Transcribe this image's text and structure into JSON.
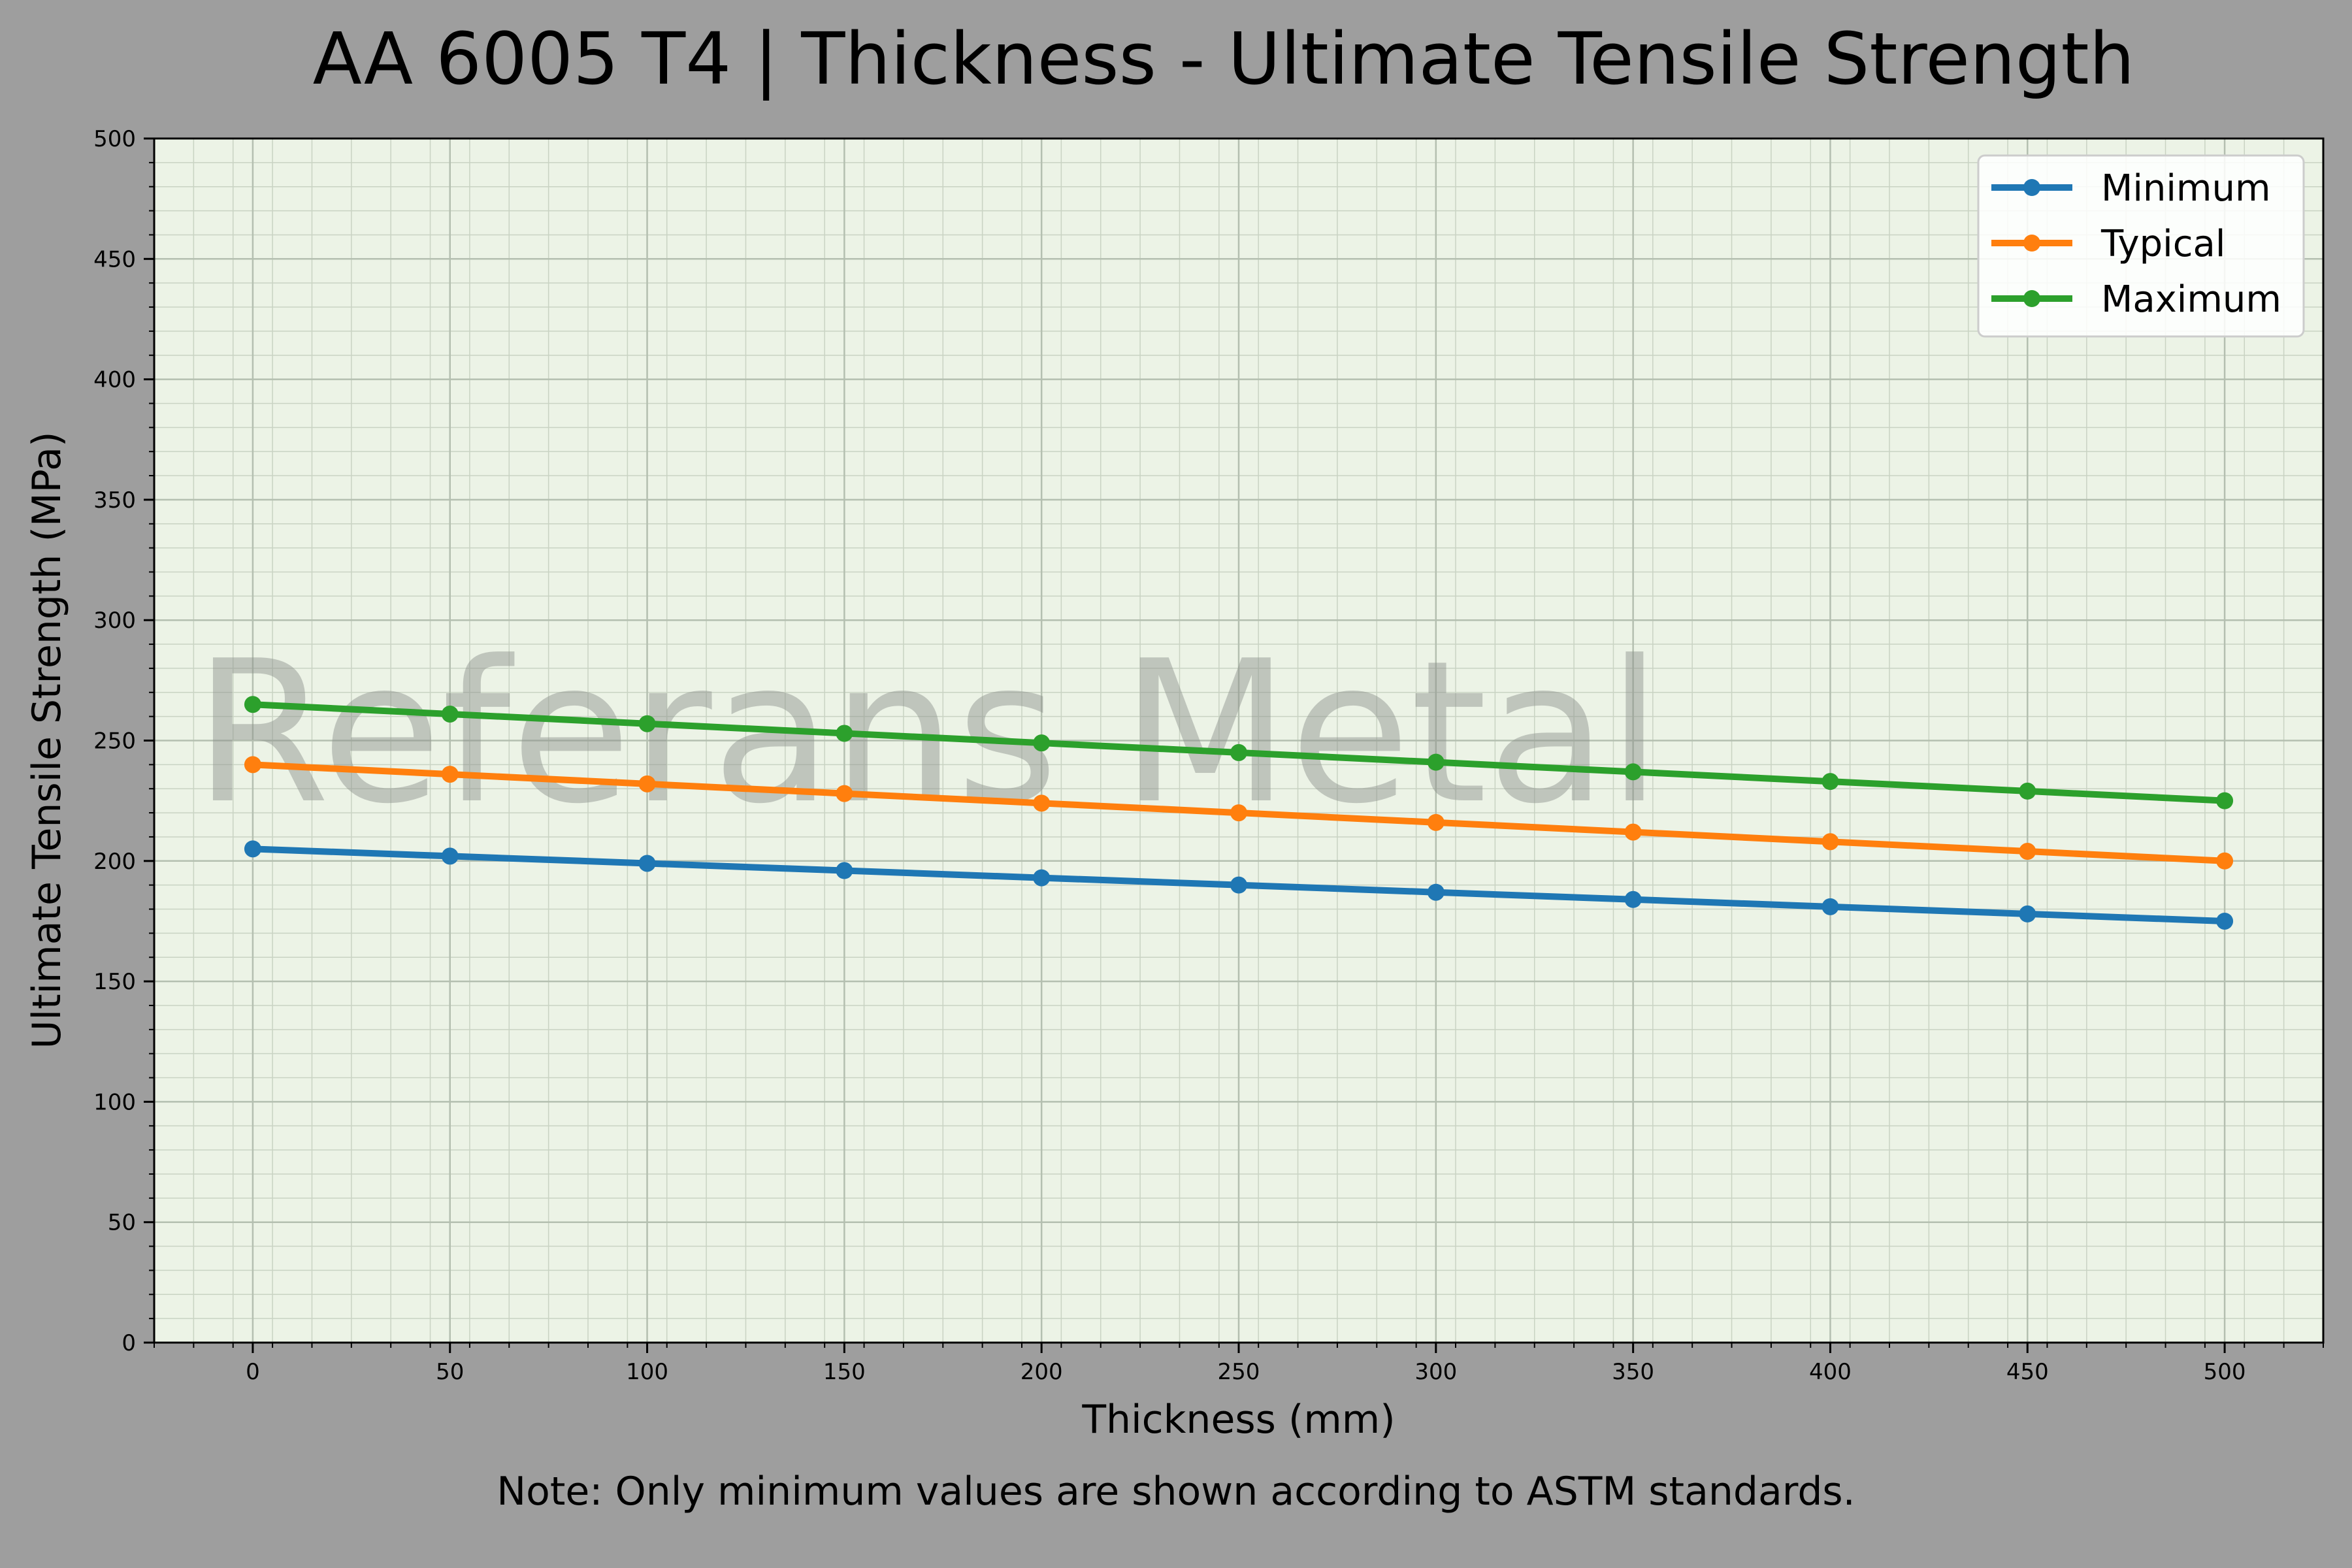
{
  "chart_data": {
    "type": "line",
    "title": "AA 6005 T4 | Thickness - Ultimate Tensile Strength",
    "xlabel": "Thickness (mm)",
    "ylabel": "Ultimate Tensile Strength (MPa)",
    "note": "Note: Only minimum values are shown according to ASTM standards.",
    "watermark": "Referans Metal",
    "x": [
      0,
      50,
      100,
      150,
      200,
      250,
      300,
      350,
      400,
      450,
      500
    ],
    "xlim": [
      -25,
      525
    ],
    "ylim": [
      0,
      500
    ],
    "xticks": [
      0,
      50,
      100,
      150,
      200,
      250,
      300,
      350,
      400,
      450,
      500
    ],
    "yticks": [
      0,
      50,
      100,
      150,
      200,
      250,
      300,
      350,
      400,
      450,
      500
    ],
    "grid": true,
    "legend_position": "top-right",
    "plot_background": "#ecf3e6",
    "series": [
      {
        "name": "Minimum",
        "color": "#1f77b4",
        "values": [
          205,
          202,
          199,
          196,
          193,
          190,
          187,
          184,
          181,
          178,
          175
        ]
      },
      {
        "name": "Typical",
        "color": "#ff7f0e",
        "values": [
          240,
          236,
          232,
          228,
          224,
          220,
          216,
          212,
          208,
          204,
          200
        ]
      },
      {
        "name": "Maximum",
        "color": "#2ca02c",
        "values": [
          265,
          261,
          257,
          253,
          249,
          245,
          241,
          237,
          233,
          229,
          225
        ]
      }
    ]
  }
}
